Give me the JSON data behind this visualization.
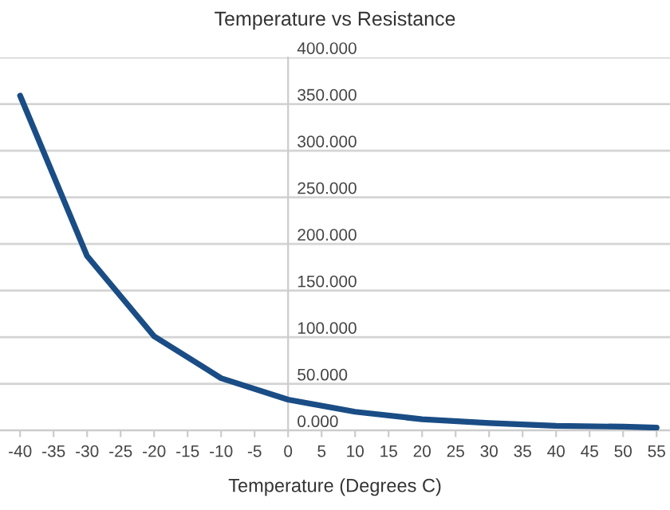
{
  "chart_data": {
    "type": "line",
    "title": "Temperature vs Resistance",
    "xlabel": "Temperature (Degrees C)",
    "series": [
      {
        "color": "#1a4d85",
        "x": [
          -40,
          -30,
          -20,
          -10,
          0,
          10,
          20,
          30,
          40,
          50,
          55
        ],
        "values": [
          359,
          187,
          101,
          56,
          33,
          20,
          12,
          8,
          5,
          4,
          3
        ]
      }
    ],
    "xlim": [
      -43,
      57
    ],
    "xticks": [
      -40,
      -35,
      -30,
      -25,
      -20,
      -15,
      -10,
      -5,
      0,
      5,
      10,
      15,
      20,
      25,
      30,
      35,
      40,
      45,
      50,
      55
    ],
    "ylim": [
      0,
      400
    ],
    "yticks": [
      {
        "value": 0,
        "label": "0.000"
      },
      {
        "value": 50,
        "label": "50.000"
      },
      {
        "value": 100,
        "label": "100.000"
      },
      {
        "value": 150,
        "label": "150.000"
      },
      {
        "value": 200,
        "label": "200.000"
      },
      {
        "value": 250,
        "label": "250.000"
      },
      {
        "value": 300,
        "label": "300.000"
      },
      {
        "value": 350,
        "label": "350.000"
      },
      {
        "value": 400,
        "label": "400.000"
      }
    ],
    "grid": "y",
    "marker": "none",
    "line_style": "solid"
  }
}
